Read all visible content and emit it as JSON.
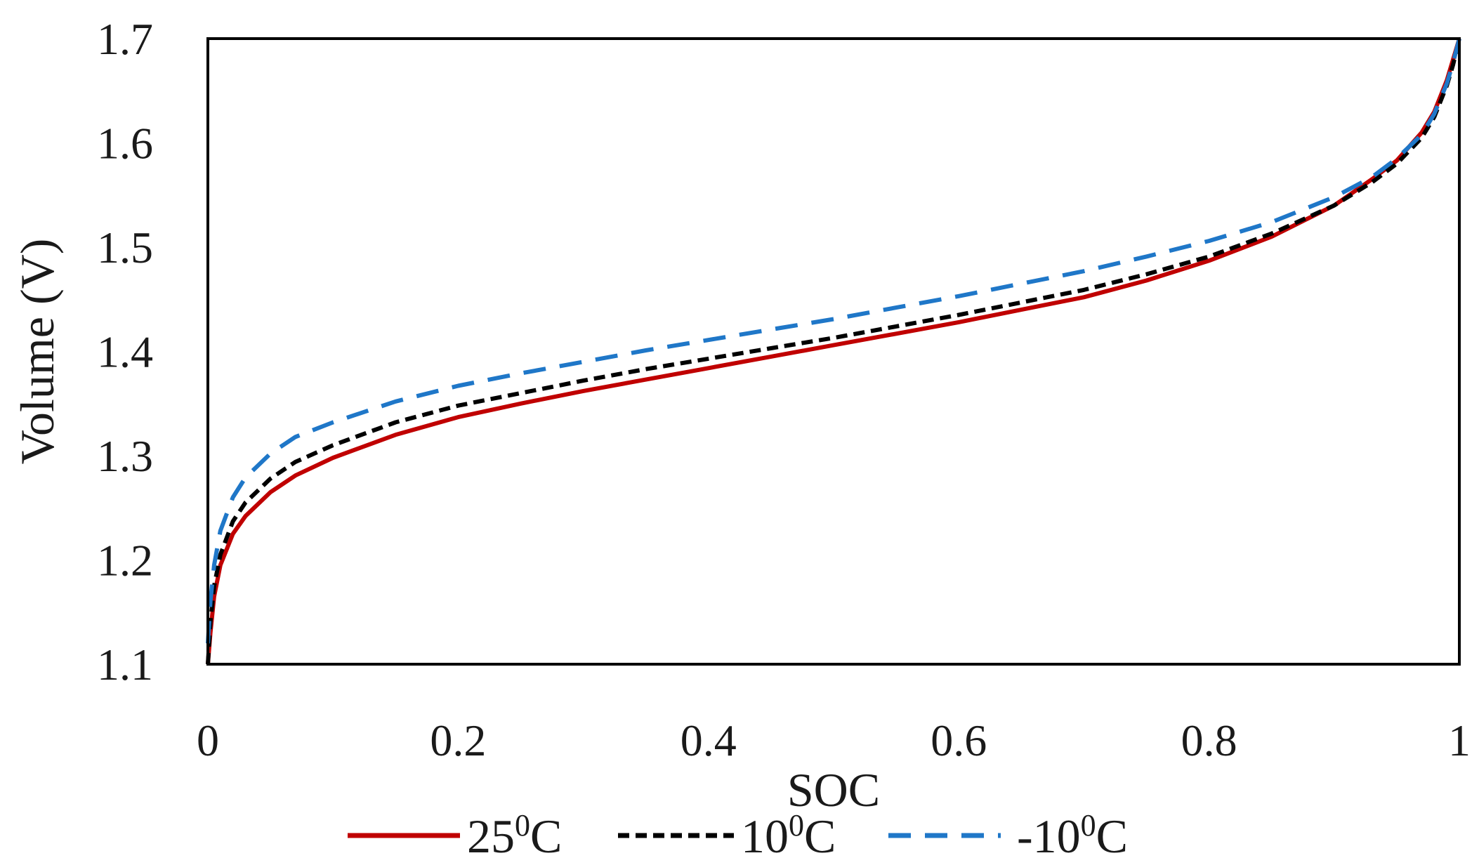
{
  "chart_data": {
    "type": "line",
    "title": "",
    "xlabel": "SOC",
    "ylabel": "Volume (V)",
    "xlim": [
      0,
      1
    ],
    "ylim": [
      1.1,
      1.7
    ],
    "grid": false,
    "legend_position": "bottom",
    "x_ticks": [
      0,
      0.2,
      0.4,
      0.6,
      0.8,
      1
    ],
    "x_tick_labels": [
      "0",
      "0.2",
      "0.4",
      "0.6",
      "0.8",
      "1"
    ],
    "y_ticks": [
      1.1,
      1.2,
      1.3,
      1.4,
      1.5,
      1.6,
      1.7
    ],
    "y_tick_labels": [
      "1.1",
      "1.2",
      "1.3",
      "1.4",
      "1.5",
      "1.6",
      "1.7"
    ],
    "x": [
      0,
      0.002,
      0.005,
      0.01,
      0.02,
      0.03,
      0.05,
      0.07,
      0.1,
      0.15,
      0.2,
      0.25,
      0.3,
      0.35,
      0.4,
      0.45,
      0.5,
      0.55,
      0.6,
      0.65,
      0.7,
      0.75,
      0.8,
      0.85,
      0.9,
      0.93,
      0.95,
      0.97,
      0.98,
      0.99,
      0.995,
      1.0
    ],
    "series": [
      {
        "name": "25⁰C",
        "label_main": "25",
        "label_sup": "0",
        "label_unit": "C",
        "color": "#c00000",
        "dash": "solid",
        "values": [
          1.1,
          1.13,
          1.165,
          1.195,
          1.225,
          1.242,
          1.265,
          1.281,
          1.298,
          1.32,
          1.337,
          1.35,
          1.362,
          1.373,
          1.384,
          1.395,
          1.406,
          1.417,
          1.428,
          1.44,
          1.452,
          1.468,
          1.487,
          1.51,
          1.54,
          1.565,
          1.583,
          1.61,
          1.63,
          1.66,
          1.68,
          1.7
        ]
      },
      {
        "name": "10⁰C",
        "label_main": "10",
        "label_sup": "0",
        "label_unit": "C",
        "color": "#000000",
        "dash": "short",
        "values": [
          1.1,
          1.14,
          1.175,
          1.205,
          1.237,
          1.255,
          1.278,
          1.294,
          1.31,
          1.332,
          1.348,
          1.36,
          1.372,
          1.383,
          1.393,
          1.403,
          1.413,
          1.424,
          1.435,
          1.447,
          1.459,
          1.474,
          1.491,
          1.513,
          1.54,
          1.562,
          1.58,
          1.605,
          1.625,
          1.655,
          1.675,
          1.7
        ]
      },
      {
        "name": "-10⁰C",
        "label_main": "-10",
        "label_sup": "0",
        "label_unit": "C",
        "color": "#1f77c8",
        "dash": "long",
        "values": [
          1.12,
          1.16,
          1.195,
          1.228,
          1.26,
          1.279,
          1.302,
          1.318,
          1.332,
          1.352,
          1.367,
          1.379,
          1.39,
          1.401,
          1.411,
          1.421,
          1.431,
          1.442,
          1.453,
          1.465,
          1.477,
          1.491,
          1.506,
          1.524,
          1.548,
          1.567,
          1.585,
          1.608,
          1.628,
          1.657,
          1.677,
          1.7
        ]
      }
    ]
  }
}
